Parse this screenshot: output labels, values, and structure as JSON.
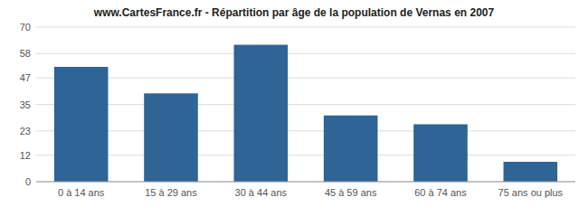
{
  "chart_data": {
    "type": "bar",
    "title": "www.CartesFrance.fr - Répartition par âge de la population de Vernas en 2007",
    "categories": [
      "0 à 14 ans",
      "15 à 29 ans",
      "30 à 44 ans",
      "45 à 59 ans",
      "60 à 74 ans",
      "75 ans ou plus"
    ],
    "values": [
      52,
      40,
      62,
      30,
      26,
      9
    ],
    "color": "#2e6496",
    "ylim": [
      0,
      70
    ],
    "yticks": [
      0,
      12,
      23,
      35,
      47,
      58,
      70
    ],
    "grid": true
  }
}
